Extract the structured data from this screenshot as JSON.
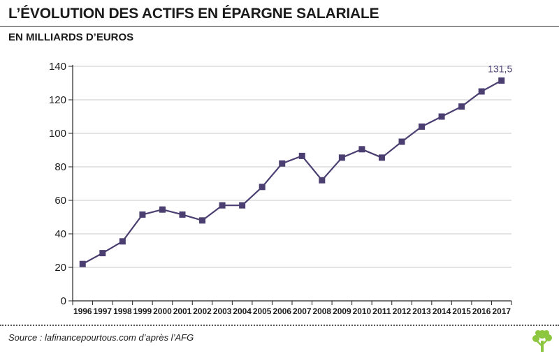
{
  "header": {
    "title": "L’ÉVOLUTION DES ACTIFS EN ÉPARGNE SALARIALE",
    "subtitle": "EN MILLIARDS D’EUROS"
  },
  "footer": {
    "source": "Source : lafinancepourtous.com d’après l’AFG",
    "logo_icon": "tree-icon"
  },
  "colors": {
    "series": "#4b3f72",
    "grid": "#c8c8c8",
    "axis": "#222222",
    "logo": "#8dc63f"
  },
  "chart_data": {
    "type": "line",
    "title": "L’ÉVOLUTION DES ACTIFS EN ÉPARGNE SALARIALE",
    "ylabel": "EN MILLIARDS D’EUROS",
    "xlabel": "",
    "categories": [
      "1996",
      "1997",
      "1998",
      "1999",
      "2000",
      "2001",
      "2002",
      "2003",
      "2004",
      "2005",
      "2006",
      "2007",
      "2008",
      "2009",
      "2010",
      "2011",
      "2012",
      "2013",
      "2014",
      "2015",
      "2016",
      "2017"
    ],
    "series": [
      {
        "name": "",
        "values": [
          22,
          28.5,
          35.5,
          51.5,
          54.5,
          51.5,
          48,
          57,
          57,
          68,
          82,
          86.5,
          72,
          85.5,
          90.5,
          85.5,
          95,
          104,
          110,
          116,
          125,
          131.5
        ]
      }
    ],
    "yticks": [
      "0",
      "20",
      "40",
      "60",
      "80",
      "100",
      "120",
      "140"
    ],
    "ylim": [
      0,
      140
    ],
    "grid": true,
    "annotations": [
      {
        "category": "2017",
        "text": "131,5"
      }
    ]
  }
}
